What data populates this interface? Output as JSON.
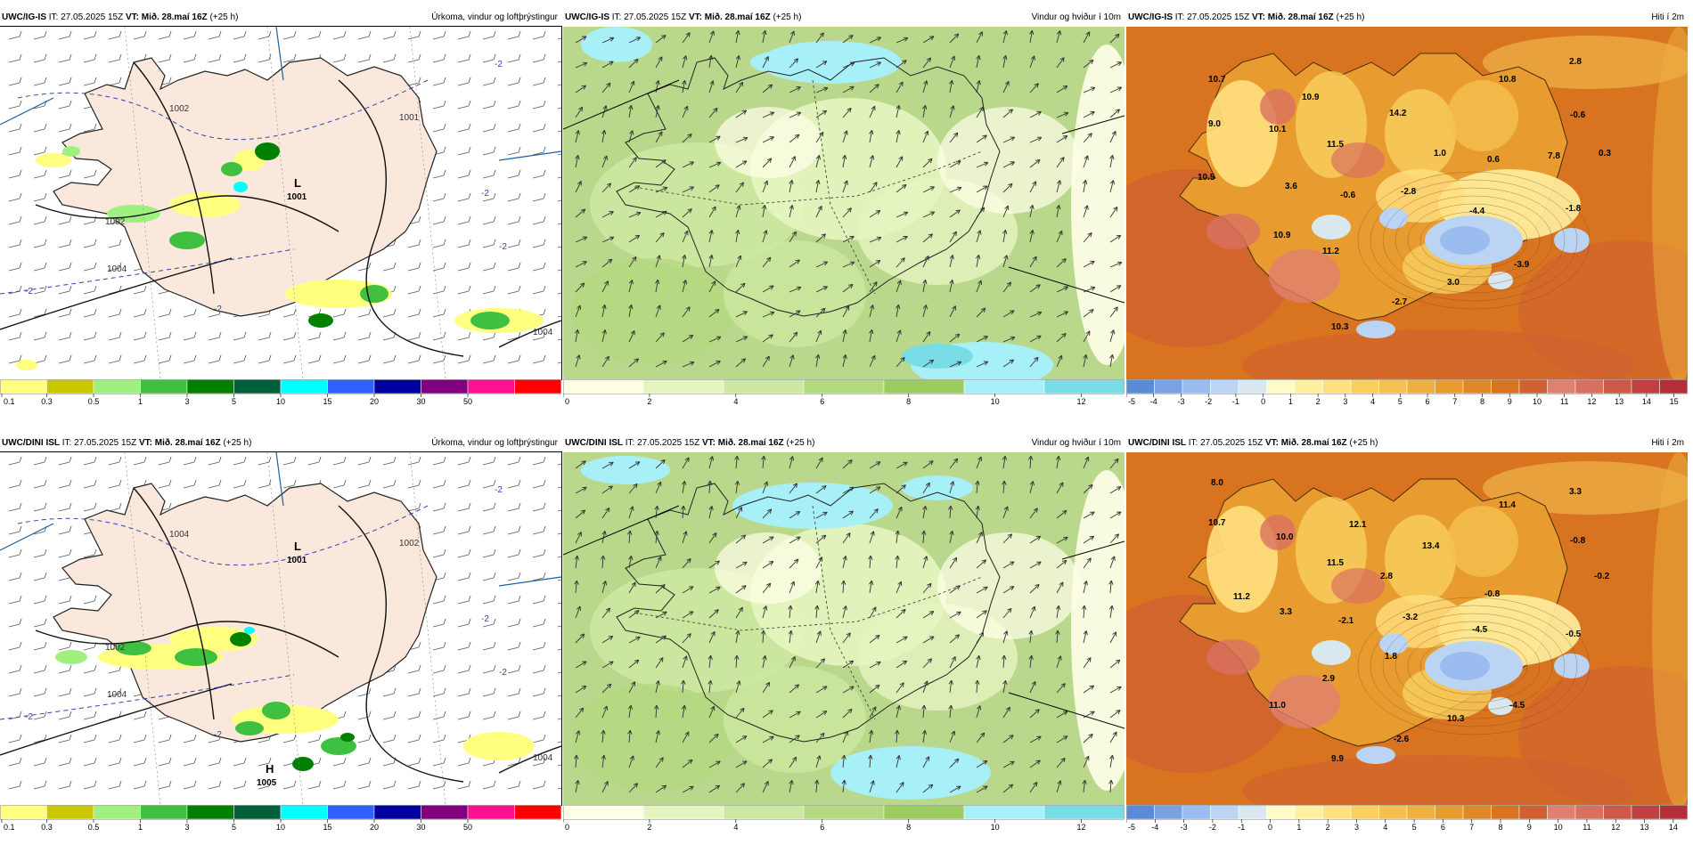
{
  "rows": [
    {
      "panels": [
        {
          "model": "UWC/IG-IS",
          "it": "IT: 27.05.2025 15Z",
          "vt": "VT: Mið. 28.maí 16Z",
          "lead": "(+25 h)",
          "product": "Úrkoma, vindur og loftþrýstingur",
          "kind": "precip",
          "isobars": [
            "1002",
            "1002",
            "1001",
            "1004",
            "1004"
          ],
          "lows": [
            {
              "mark": "L",
              "value": "1001"
            }
          ],
          "highs": [],
          "labels": [
            "-2",
            "-2",
            "-2",
            "-2",
            "-2"
          ]
        },
        {
          "model": "UWC/IG-IS",
          "it": "IT: 27.05.2025 15Z",
          "vt": "VT: Mið. 28.maí 16Z",
          "lead": "(+25 h)",
          "product": "Vindur og hviður í 10m",
          "kind": "wind"
        },
        {
          "model": "UWC/IG-IS",
          "it": "IT: 27.05.2025 15Z",
          "vt": "VT: Mið. 28.maí 16Z",
          "lead": "(+25 h)",
          "product": "Hiti í 2m",
          "kind": "temp",
          "temps": [
            "10.7",
            "10.8",
            "2.8",
            "9.0",
            "10.9",
            "14.2",
            "-0.6",
            "10.1",
            "11.5",
            "1.0",
            "7.8",
            "0.6",
            "0.3",
            "10.5",
            "3.6",
            "-0.6",
            "-2.8",
            "-4.4",
            "-1.8",
            "10.9",
            "11.2",
            "-3.9",
            "3.0",
            "-2.7",
            "10.3"
          ]
        }
      ]
    },
    {
      "panels": [
        {
          "model": "UWC/DINI ISL",
          "it": "IT: 27.05.2025 15Z",
          "vt": "VT: Mið. 28.maí 16Z",
          "lead": "(+25 h)",
          "product": "Úrkoma, vindur og loftþrýstingur",
          "kind": "precip",
          "isobars": [
            "1002",
            "1004",
            "1002",
            "1004",
            "1004"
          ],
          "lows": [
            {
              "mark": "L",
              "value": "1001"
            }
          ],
          "highs": [
            {
              "mark": "H",
              "value": "1005"
            }
          ],
          "labels": [
            "-2",
            "-2",
            "-2",
            "-2",
            "-2"
          ]
        },
        {
          "model": "UWC/DINI ISL",
          "it": "IT: 27.05.2025 15Z",
          "vt": "VT: Mið. 28.maí 16Z",
          "lead": "(+25 h)",
          "product": "Vindur og hviður í 10m",
          "kind": "wind"
        },
        {
          "model": "UWC/DINI ISL",
          "it": "IT: 27.05.2025 15Z",
          "vt": "VT: Mið. 28.maí 16Z",
          "lead": "(+25 h)",
          "product": "Hiti í 2m",
          "kind": "temp",
          "temps": [
            "8.0",
            "3.3",
            "10.7",
            "10.0",
            "12.1",
            "11.4",
            "13.4",
            "-0.8",
            "11.5",
            "2.8",
            "-0.2",
            "11.2",
            "-0.8",
            "3.3",
            "-2.1",
            "-3.2",
            "-4.5",
            "-0.5",
            "1.8",
            "2.9",
            "11.0",
            "-4.5",
            "10.3",
            "-2.6",
            "9.9"
          ]
        }
      ]
    }
  ],
  "scales": {
    "precip": {
      "ticks": [
        "0.1",
        "0.3",
        "0.5",
        "1",
        "3",
        "5",
        "10",
        "15",
        "20",
        "30",
        "50"
      ],
      "colors": [
        "#ffff80",
        "#c8c800",
        "#a0f080",
        "#40c040",
        "#008000",
        "#00603c",
        "#00ffff",
        "#3060ff",
        "#0000a0",
        "#800080",
        "#ff1090",
        "#ff0000"
      ]
    },
    "wind": {
      "ticks": [
        "0",
        "2",
        "4",
        "6",
        "8",
        "10",
        "12"
      ],
      "colors": [
        "#ffffe8",
        "#e6f5c0",
        "#cde8a0",
        "#b4da80",
        "#9ccc60",
        "#a8f0f8",
        "#78dce6"
      ]
    },
    "temp": {
      "ticks_top": [
        "-5",
        "-4",
        "-3",
        "-2",
        "-1",
        "0",
        "1",
        "2",
        "3",
        "4",
        "5",
        "6",
        "7",
        "8",
        "9",
        "10",
        "11",
        "12",
        "13",
        "14",
        "15"
      ],
      "ticks_bottom": [
        "-5",
        "-4",
        "-3",
        "-2",
        "-1",
        "0",
        "1",
        "2",
        "3",
        "4",
        "5",
        "6",
        "7",
        "8",
        "9",
        "10",
        "11",
        "12",
        "13",
        "14"
      ],
      "colors": [
        "#5a8ad8",
        "#7aa2e2",
        "#9abcee",
        "#bcd4f4",
        "#d8e8ee",
        "#fffac8",
        "#fff0a0",
        "#ffe080",
        "#f8d060",
        "#f4c050",
        "#eeb040",
        "#e89c30",
        "#e08828",
        "#d87420",
        "#d06030",
        "#e08070",
        "#d87060",
        "#cc5848",
        "#c04040",
        "#b43038"
      ]
    }
  },
  "tickmarks": {
    "n": "N9",
    "n2": "N9"
  }
}
